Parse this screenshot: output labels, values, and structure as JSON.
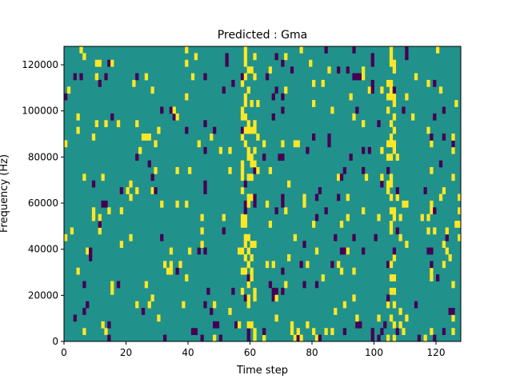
{
  "chart_data": {
    "type": "heatmap",
    "title": "Predicted : Gma",
    "xlabel": "Time step",
    "ylabel": "Frequency (Hz)",
    "xlim": [
      0,
      128
    ],
    "ylim": [
      0,
      128000
    ],
    "x_ticks": [
      0,
      20,
      40,
      60,
      80,
      100,
      120
    ],
    "y_ticks": [
      0,
      20000,
      40000,
      60000,
      80000,
      100000,
      120000
    ],
    "y_tick_labels": [
      "0",
      "20000",
      "40000",
      "60000",
      "80000",
      "100000",
      "120000"
    ],
    "grid": false,
    "value_levels": [
      -1,
      0,
      1
    ],
    "colors": {
      "-1": "#440154",
      "0": "#21918c",
      "1": "#fde725"
    },
    "rows": 44,
    "cols": 128,
    "seed": 7,
    "hotspot_columns": [
      57,
      58,
      59,
      60,
      61,
      104,
      105,
      106
    ],
    "dark_columns": [
      45,
      52,
      67,
      68,
      70,
      88,
      93,
      99,
      110,
      119
    ]
  }
}
